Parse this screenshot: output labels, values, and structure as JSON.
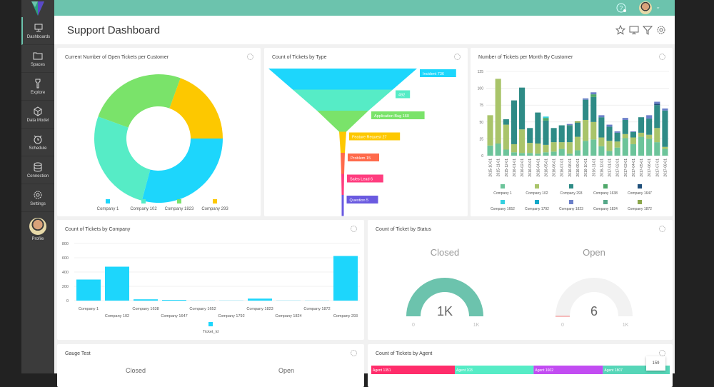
{
  "sidebar": {
    "items": [
      {
        "label": "Dashboards",
        "icon": "monitor-icon"
      },
      {
        "label": "Spaces",
        "icon": "folder-icon"
      },
      {
        "label": "Explore",
        "icon": "flashlight-icon"
      },
      {
        "label": "Data Model",
        "icon": "cube-icon"
      },
      {
        "label": "Schedule",
        "icon": "alarm-clock-icon"
      },
      {
        "label": "Connection",
        "icon": "database-icon"
      },
      {
        "label": "Settings",
        "icon": "gear-icon"
      }
    ],
    "profile": "Profile"
  },
  "header": {
    "title": "Support Dashboard"
  },
  "colors": {
    "accent": "#6cc3ad"
  },
  "chart_data": [
    {
      "type": "pie",
      "title": "Current Number of Open Tickets per Customer",
      "categories": [
        "Company 1",
        "Company 102",
        "Company 1823",
        "Company 293"
      ],
      "values": [
        105,
        95,
        90,
        70
      ],
      "colors": [
        "#1dd6fc",
        "#56ecc6",
        "#7ae36a",
        "#fdc800"
      ]
    },
    {
      "type": "funnel",
      "title": "Count of Tickets by Type",
      "labels": [
        "Incident 736",
        "492",
        "Application Bug 160",
        "Feature Request 27",
        "Problem 15",
        "Sales Lead 6",
        "Question 5"
      ],
      "values": [
        736,
        492,
        160,
        27,
        15,
        6,
        5
      ],
      "colors": [
        "#1dd6fc",
        "#56ecc6",
        "#7ae36a",
        "#fdc800",
        "#ff6a4b",
        "#ff3d7f",
        "#6a5ae0"
      ]
    },
    {
      "type": "bar",
      "stacked": true,
      "title": "Number of Tickets per Month By Customer",
      "ylim": [
        0,
        125
      ],
      "yticks": [
        0,
        25,
        50,
        75,
        100,
        125
      ],
      "categories": [
        "2015-10-01",
        "2015-11-01",
        "2015-12-01",
        "2016-01-01",
        "2016-02-01",
        "2016-03-01",
        "2016-04-01",
        "2016-05-01",
        "2016-06-01",
        "2016-07-01",
        "2016-08-01",
        "2016-09-01",
        "2016-10-01",
        "2016-11-01",
        "2016-12-01",
        "2017-01-01",
        "2017-02-01",
        "2017-03-01",
        "2017-04-01",
        "2017-05-01",
        "2017-06-01",
        "2017-07-01",
        "2017-08-01"
      ],
      "series": [
        {
          "name": "Company 1",
          "color": "#6cc49a",
          "values": [
            15,
            18,
            9,
            5,
            4,
            4,
            3,
            5,
            6,
            10,
            3,
            8,
            22,
            24,
            14,
            7,
            12,
            26,
            17,
            28,
            25,
            20,
            10
          ]
        },
        {
          "name": "Company 102",
          "color": "#a9c46a",
          "values": [
            45,
            96,
            37,
            12,
            35,
            15,
            15,
            11,
            14,
            10,
            17,
            20,
            31,
            26,
            13,
            15,
            9,
            6,
            10,
            6,
            6,
            21,
            3
          ]
        },
        {
          "name": "Company 293",
          "color": "#2e8b86",
          "values": [
            0,
            0,
            8,
            65,
            62,
            22,
            46,
            36,
            21,
            25,
            24,
            21,
            30,
            37,
            30,
            21,
            13,
            21,
            8,
            23,
            24,
            34,
            54
          ]
        },
        {
          "name": "Company 1638",
          "color": "#4fa86a",
          "values": [
            0,
            0,
            0,
            0,
            0,
            0,
            0,
            4,
            0,
            0,
            1,
            0,
            0,
            4,
            0,
            0,
            0,
            0,
            0,
            0,
            0,
            0,
            0
          ]
        },
        {
          "name": "Company 1647",
          "color": "#1f4f7a",
          "values": [
            0,
            0,
            0,
            0,
            0,
            0,
            0,
            0,
            0,
            0,
            0,
            0,
            0,
            0,
            0,
            0,
            0,
            0,
            0,
            0,
            0,
            2,
            0
          ]
        },
        {
          "name": "Company 1652",
          "color": "#35d0e0",
          "values": [
            0,
            0,
            0,
            0,
            0,
            0,
            0,
            2,
            0,
            0,
            0,
            0,
            0,
            0,
            0,
            0,
            0,
            0,
            0,
            0,
            0,
            0,
            0
          ]
        },
        {
          "name": "Company 1792",
          "color": "#13a8c8",
          "values": [
            0,
            0,
            0,
            0,
            0,
            0,
            0,
            0,
            0,
            0,
            0,
            0,
            0,
            0,
            0,
            0,
            0,
            0,
            0,
            0,
            0,
            0,
            0
          ]
        },
        {
          "name": "Company 1823",
          "color": "#6a7fc8",
          "values": [
            0,
            0,
            0,
            0,
            0,
            0,
            0,
            0,
            0,
            0,
            2,
            0,
            2,
            3,
            3,
            3,
            2,
            3,
            1,
            0,
            5,
            3,
            3
          ]
        },
        {
          "name": "Company 1824",
          "color": "#56a889",
          "values": [
            0,
            0,
            0,
            0,
            0,
            0,
            0,
            0,
            0,
            0,
            0,
            0,
            0,
            0,
            0,
            0,
            0,
            0,
            0,
            0,
            0,
            0,
            0
          ]
        },
        {
          "name": "Company 1872",
          "color": "#8aa64a",
          "values": [
            0,
            0,
            0,
            0,
            0,
            0,
            0,
            0,
            0,
            0,
            0,
            2,
            0,
            0,
            0,
            0,
            0,
            0,
            0,
            0,
            0,
            0,
            0
          ]
        }
      ]
    },
    {
      "type": "bar",
      "title": "Count of Tickets by Company",
      "ylim": [
        0,
        800
      ],
      "yticks": [
        0,
        200,
        400,
        600,
        800
      ],
      "legend": "Ticket_Id",
      "color": "#1dd6fc",
      "categories": [
        "Company 1",
        "Company 102",
        "Company 1638",
        "Company 1647",
        "Company 1652",
        "Company 1792",
        "Company 1823",
        "Company 1824",
        "Company 1872",
        "Company 293"
      ],
      "values": [
        295,
        475,
        18,
        10,
        2,
        2,
        28,
        2,
        2,
        625
      ]
    },
    {
      "type": "gauge",
      "title": "Count of Ticket by Status",
      "gauges": [
        {
          "label": "Closed",
          "value_label": "1K",
          "value": 1000,
          "min": "0",
          "max": "1K",
          "max_value": 1000
        },
        {
          "label": "Open",
          "value_label": "6",
          "value": 6,
          "min": "0",
          "max": "1K",
          "max_value": 1000
        }
      ]
    },
    {
      "type": "gauge",
      "title": "Gauge Test",
      "labels": [
        "Closed",
        "Open"
      ]
    },
    {
      "type": "bar",
      "title": "Count of Tickets by Agent",
      "labels": [
        "Agent 1351",
        "Agent 103",
        "Agent 1602",
        "Agent 1807"
      ],
      "values": [
        350,
        330,
        290,
        280
      ],
      "colors": [
        "#ff2d6b",
        "#56ecc6",
        "#c24cf2",
        "#56d6b8"
      ],
      "tooltip": "159"
    }
  ]
}
